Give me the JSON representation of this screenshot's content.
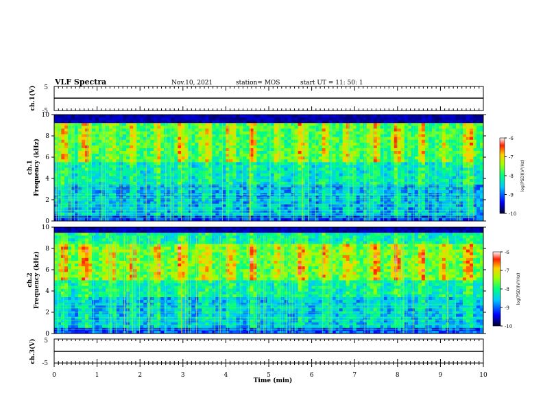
{
  "header": {
    "title": "VLF Spectra",
    "date": "Nov.10, 2021",
    "station": "station= MOS",
    "start": "start  UT =   11: 50: 1"
  },
  "chart_data": [
    {
      "type": "line",
      "name": "ch1-voltage",
      "ylabel": "ch.1(V)",
      "ylim": [
        -5,
        5
      ],
      "yticks": [
        5,
        -5
      ],
      "xlim": [
        0,
        10
      ],
      "baseline_value": 0
    },
    {
      "type": "heatmap",
      "name": "ch1-spectrogram",
      "ylabel": "ch.1\nFrequency (kHz)",
      "ylabel_line1": "ch.1",
      "ylabel_line2": "Frequency (kHz)",
      "ylim": [
        0,
        10
      ],
      "yticks": [
        0,
        2,
        4,
        6,
        8,
        10
      ],
      "xlim": [
        0,
        10
      ],
      "colorbar": {
        "label": "log(PSD)(V²/Hz)",
        "ticks": [
          -6,
          -7,
          -8,
          -9,
          -10
        ],
        "range": [
          -10,
          -6
        ]
      },
      "bright_band_khz": [
        5.5,
        9.2
      ],
      "cutoff_khz": 9.2,
      "hum_lines_khz": [
        0.3,
        0.5,
        0.7,
        1.0,
        1.3,
        1.6,
        2.0,
        2.2,
        2.5,
        3.0,
        3.3
      ]
    },
    {
      "type": "heatmap",
      "name": "ch2-spectrogram",
      "ylabel_line1": "ch.2",
      "ylabel_line2": "Frequency (kHz)",
      "ylim": [
        0,
        10
      ],
      "yticks": [
        0,
        2,
        4,
        6,
        8,
        10
      ],
      "xlim": [
        0,
        10
      ],
      "colorbar": {
        "label": "log(PSD)(V²/Hz)",
        "ticks": [
          -6,
          -7,
          -8,
          -9,
          -10
        ],
        "range": [
          -10,
          -6
        ]
      },
      "bright_band_khz": [
        5.0,
        8.5
      ],
      "cutoff_khz": 9.6,
      "hum_lines_khz": [
        0.4,
        0.8,
        1.2,
        1.5,
        2.0,
        2.4,
        2.7
      ]
    },
    {
      "type": "line",
      "name": "ch3-voltage",
      "ylabel": "ch.3(V)",
      "ylim": [
        -5,
        5
      ],
      "yticks": [
        5,
        -5
      ],
      "xlim": [
        0,
        10
      ],
      "baseline_value": 0
    }
  ],
  "xaxis": {
    "label": "Time  (min)",
    "ticks": [
      0,
      1,
      2,
      3,
      4,
      5,
      6,
      7,
      8,
      9,
      10
    ]
  }
}
